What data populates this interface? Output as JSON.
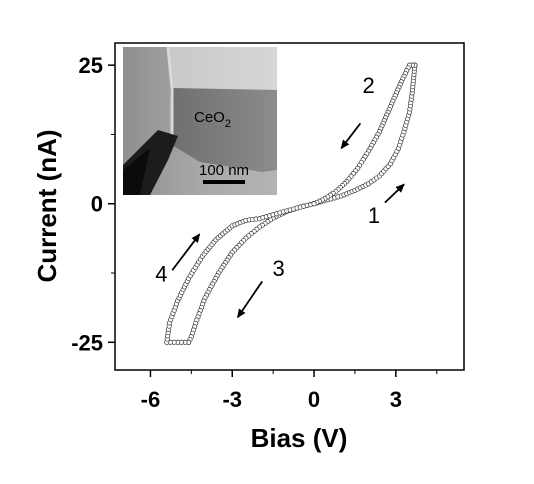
{
  "chart_data": {
    "type": "scatter",
    "xlabel": "Bias (V)",
    "ylabel": "Current (nA)",
    "xlim": [
      -7.3,
      5.5
    ],
    "ylim": [
      -30,
      29
    ],
    "xticks": [
      -6,
      -3,
      0,
      3
    ],
    "xtick_labels": [
      "-6",
      "-3",
      "0",
      "3"
    ],
    "yticks": [
      -25,
      0,
      25
    ],
    "ytick_labels": [
      "-25",
      "0",
      "25"
    ],
    "grid": false,
    "legend": "none",
    "marker": "open-circle",
    "line_color": "#555555",
    "series": [
      {
        "segment": "1",
        "x": [
          0.0,
          0.5,
          1.0,
          1.5,
          2.0,
          2.4,
          2.8,
          3.1,
          3.3,
          3.5,
          3.6,
          3.7
        ],
        "y": [
          0.0,
          0.7,
          1.4,
          2.4,
          3.6,
          5.0,
          7.2,
          10.0,
          13.0,
          16.5,
          20.0,
          25.0
        ]
      },
      {
        "segment": "2",
        "x": [
          3.7,
          3.5,
          3.2,
          2.8,
          2.4,
          2.0,
          1.6,
          1.2,
          0.8,
          0.4,
          0.0
        ],
        "y": [
          25.0,
          25.0,
          22.0,
          17.5,
          13.0,
          9.5,
          6.4,
          4.0,
          2.2,
          0.9,
          0.0
        ]
      },
      {
        "segment": "3",
        "x": [
          0.0,
          -0.5,
          -1.0,
          -1.5,
          -2.0,
          -2.5,
          -3.0,
          -3.5,
          -4.0,
          -4.3,
          -4.5,
          -4.6
        ],
        "y": [
          0.0,
          -0.6,
          -1.4,
          -2.6,
          -4.2,
          -6.2,
          -8.8,
          -12.5,
          -17.0,
          -21.0,
          -24.0,
          -25.0
        ]
      },
      {
        "segment": "4",
        "x": [
          -4.6,
          -5.0,
          -5.4,
          -5.3,
          -5.0,
          -4.6,
          -4.1,
          -3.6,
          -3.0,
          -2.5,
          -2.0,
          -1.5,
          -1.0,
          -0.5,
          0.0
        ],
        "y": [
          -25.0,
          -25.0,
          -25.0,
          -21.5,
          -17.5,
          -13.5,
          -9.5,
          -6.5,
          -4.0,
          -3.0,
          -2.7,
          -2.0,
          -1.3,
          -0.6,
          0.0
        ]
      }
    ],
    "annotations": [
      {
        "label": "1",
        "x": 2.2,
        "y": -3.5,
        "arrow_from": [
          2.6,
          0.2
        ],
        "arrow_to": [
          3.3,
          3.5
        ]
      },
      {
        "label": "2",
        "x": 2.0,
        "y": 20.0,
        "arrow_from": [
          1.7,
          14.5
        ],
        "arrow_to": [
          1.0,
          10.0
        ]
      },
      {
        "label": "3",
        "x": -1.3,
        "y": -13.0,
        "arrow_from": [
          -1.9,
          -14.0
        ],
        "arrow_to": [
          -2.8,
          -20.5
        ]
      },
      {
        "label": "4",
        "x": -5.6,
        "y": -14.0,
        "arrow_from": [
          -5.2,
          -12.0
        ],
        "arrow_to": [
          -4.2,
          -5.5
        ]
      }
    ]
  },
  "inset": {
    "material_label": "CeO",
    "material_subscript": "2",
    "scale_bar_label": "100 nm"
  }
}
